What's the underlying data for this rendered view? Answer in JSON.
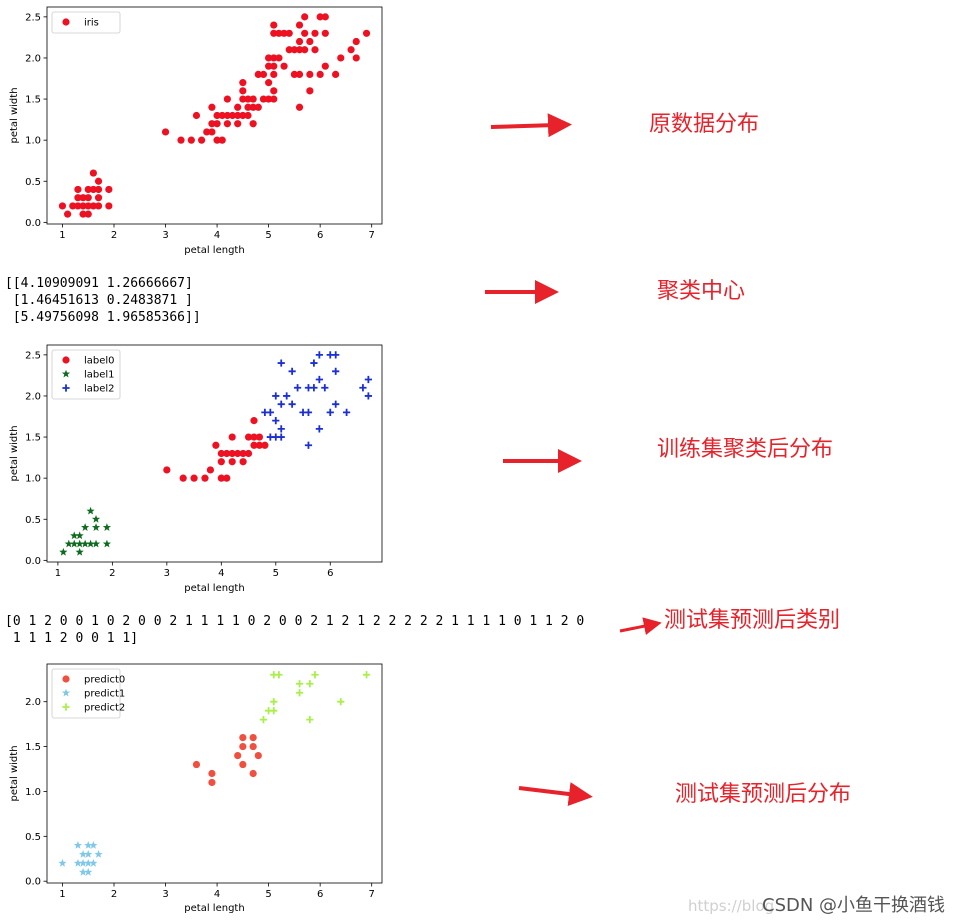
{
  "chart_data": [
    {
      "type": "scatter",
      "xlabel": "petal length",
      "ylabel": "petal width",
      "xlim": [
        0.7,
        7.2
      ],
      "ylim": [
        -0.02,
        2.62
      ],
      "xticks": [
        "1",
        "2",
        "3",
        "4",
        "5",
        "6",
        "7"
      ],
      "yticks": [
        "0.0",
        "0.5",
        "1.0",
        "1.5",
        "2.0",
        "2.5"
      ],
      "legend_position": "top-left",
      "series": [
        {
          "name": "iris",
          "color": "#ee1122",
          "marker": "circle",
          "points": [
            [
              1.0,
              0.2
            ],
            [
              1.1,
              0.1
            ],
            [
              1.2,
              0.2
            ],
            [
              1.3,
              0.2
            ],
            [
              1.3,
              0.3
            ],
            [
              1.3,
              0.4
            ],
            [
              1.4,
              0.1
            ],
            [
              1.4,
              0.2
            ],
            [
              1.4,
              0.3
            ],
            [
              1.5,
              0.1
            ],
            [
              1.5,
              0.2
            ],
            [
              1.5,
              0.3
            ],
            [
              1.5,
              0.4
            ],
            [
              1.6,
              0.2
            ],
            [
              1.6,
              0.4
            ],
            [
              1.6,
              0.6
            ],
            [
              1.7,
              0.2
            ],
            [
              1.7,
              0.3
            ],
            [
              1.7,
              0.4
            ],
            [
              1.7,
              0.5
            ],
            [
              1.9,
              0.2
            ],
            [
              1.9,
              0.4
            ],
            [
              3.0,
              1.1
            ],
            [
              3.3,
              1.0
            ],
            [
              3.5,
              1.0
            ],
            [
              3.6,
              1.3
            ],
            [
              3.7,
              1.0
            ],
            [
              3.8,
              1.1
            ],
            [
              3.9,
              1.1
            ],
            [
              3.9,
              1.2
            ],
            [
              3.9,
              1.4
            ],
            [
              4.0,
              1.0
            ],
            [
              4.0,
              1.2
            ],
            [
              4.0,
              1.3
            ],
            [
              4.1,
              1.0
            ],
            [
              4.1,
              1.3
            ],
            [
              4.2,
              1.2
            ],
            [
              4.2,
              1.3
            ],
            [
              4.2,
              1.5
            ],
            [
              4.3,
              1.3
            ],
            [
              4.4,
              1.2
            ],
            [
              4.4,
              1.3
            ],
            [
              4.4,
              1.4
            ],
            [
              4.5,
              1.3
            ],
            [
              4.5,
              1.5
            ],
            [
              4.5,
              1.6
            ],
            [
              4.5,
              1.7
            ],
            [
              4.6,
              1.3
            ],
            [
              4.6,
              1.4
            ],
            [
              4.6,
              1.5
            ],
            [
              4.7,
              1.2
            ],
            [
              4.7,
              1.4
            ],
            [
              4.7,
              1.5
            ],
            [
              4.8,
              1.4
            ],
            [
              4.8,
              1.8
            ],
            [
              4.9,
              1.5
            ],
            [
              4.9,
              1.8
            ],
            [
              5.0,
              1.5
            ],
            [
              5.0,
              1.7
            ],
            [
              5.0,
              2.0
            ],
            [
              5.0,
              1.9
            ],
            [
              5.1,
              1.5
            ],
            [
              5.1,
              1.6
            ],
            [
              5.1,
              1.8
            ],
            [
              5.1,
              1.9
            ],
            [
              5.1,
              2.0
            ],
            [
              5.1,
              2.3
            ],
            [
              5.1,
              2.4
            ],
            [
              5.2,
              2.0
            ],
            [
              5.2,
              2.3
            ],
            [
              5.3,
              1.9
            ],
            [
              5.3,
              2.3
            ],
            [
              5.4,
              2.1
            ],
            [
              5.4,
              2.3
            ],
            [
              5.5,
              1.8
            ],
            [
              5.5,
              2.1
            ],
            [
              5.6,
              1.4
            ],
            [
              5.6,
              1.8
            ],
            [
              5.6,
              2.1
            ],
            [
              5.6,
              2.2
            ],
            [
              5.6,
              2.4
            ],
            [
              5.7,
              2.1
            ],
            [
              5.7,
              2.3
            ],
            [
              5.7,
              2.5
            ],
            [
              5.8,
              1.6
            ],
            [
              5.8,
              1.8
            ],
            [
              5.8,
              2.2
            ],
            [
              5.9,
              2.1
            ],
            [
              5.9,
              2.3
            ],
            [
              6.0,
              1.8
            ],
            [
              6.0,
              2.5
            ],
            [
              6.1,
              1.9
            ],
            [
              6.1,
              2.3
            ],
            [
              6.1,
              2.5
            ],
            [
              6.3,
              1.8
            ],
            [
              6.4,
              2.0
            ],
            [
              6.6,
              2.1
            ],
            [
              6.7,
              2.0
            ],
            [
              6.7,
              2.2
            ],
            [
              6.9,
              2.3
            ]
          ]
        }
      ]
    },
    {
      "type": "scatter",
      "xlabel": "petal length",
      "ylabel": "petal width",
      "xlim": [
        0.8,
        6.95
      ],
      "ylim": [
        -0.02,
        2.62
      ],
      "xticks": [
        "1",
        "2",
        "3",
        "4",
        "5",
        "6"
      ],
      "yticks": [
        "0.0",
        "0.5",
        "1.0",
        "1.5",
        "2.0",
        "2.5"
      ],
      "legend_position": "top-left",
      "series": [
        {
          "name": "label0",
          "color": "#ee1122",
          "marker": "circle",
          "points": [
            [
              3.0,
              1.1
            ],
            [
              3.3,
              1.0
            ],
            [
              3.5,
              1.0
            ],
            [
              3.7,
              1.0
            ],
            [
              3.8,
              1.1
            ],
            [
              3.9,
              1.4
            ],
            [
              4.0,
              1.0
            ],
            [
              4.0,
              1.2
            ],
            [
              4.0,
              1.3
            ],
            [
              4.1,
              1.0
            ],
            [
              4.1,
              1.3
            ],
            [
              4.2,
              1.2
            ],
            [
              4.2,
              1.3
            ],
            [
              4.2,
              1.5
            ],
            [
              4.3,
              1.3
            ],
            [
              4.4,
              1.2
            ],
            [
              4.4,
              1.3
            ],
            [
              4.5,
              1.3
            ],
            [
              4.5,
              1.5
            ],
            [
              4.6,
              1.4
            ],
            [
              4.6,
              1.5
            ],
            [
              4.6,
              1.7
            ],
            [
              4.7,
              1.4
            ],
            [
              4.7,
              1.5
            ],
            [
              4.8,
              1.4
            ]
          ]
        },
        {
          "name": "label1",
          "color": "#0f6b1e",
          "marker": "star",
          "points": [
            [
              1.1,
              0.1
            ],
            [
              1.2,
              0.2
            ],
            [
              1.3,
              0.2
            ],
            [
              1.3,
              0.3
            ],
            [
              1.4,
              0.1
            ],
            [
              1.4,
              0.2
            ],
            [
              1.4,
              0.3
            ],
            [
              1.5,
              0.2
            ],
            [
              1.5,
              0.4
            ],
            [
              1.6,
              0.2
            ],
            [
              1.6,
              0.6
            ],
            [
              1.7,
              0.2
            ],
            [
              1.7,
              0.4
            ],
            [
              1.7,
              0.5
            ],
            [
              1.9,
              0.2
            ],
            [
              1.9,
              0.4
            ]
          ]
        },
        {
          "name": "label2",
          "color": "#1a2fd6",
          "marker": "plus",
          "points": [
            [
              4.8,
              1.8
            ],
            [
              4.9,
              1.5
            ],
            [
              4.9,
              1.8
            ],
            [
              5.0,
              1.5
            ],
            [
              5.0,
              1.7
            ],
            [
              5.0,
              2.0
            ],
            [
              5.1,
              1.5
            ],
            [
              5.1,
              1.6
            ],
            [
              5.1,
              1.9
            ],
            [
              5.1,
              2.4
            ],
            [
              5.2,
              2.0
            ],
            [
              5.3,
              1.9
            ],
            [
              5.3,
              2.3
            ],
            [
              5.4,
              2.1
            ],
            [
              5.5,
              1.8
            ],
            [
              5.6,
              1.4
            ],
            [
              5.6,
              1.8
            ],
            [
              5.6,
              2.1
            ],
            [
              5.7,
              2.1
            ],
            [
              5.7,
              2.4
            ],
            [
              5.8,
              1.6
            ],
            [
              5.8,
              2.2
            ],
            [
              5.8,
              2.5
            ],
            [
              5.9,
              2.1
            ],
            [
              6.0,
              1.8
            ],
            [
              6.0,
              2.5
            ],
            [
              6.1,
              1.9
            ],
            [
              6.1,
              2.3
            ],
            [
              6.1,
              2.5
            ],
            [
              6.3,
              1.8
            ],
            [
              6.6,
              2.1
            ],
            [
              6.7,
              2.0
            ],
            [
              6.7,
              2.2
            ]
          ]
        }
      ]
    },
    {
      "type": "scatter",
      "xlabel": "petal length",
      "ylabel": "petal width",
      "xlim": [
        0.7,
        7.2
      ],
      "ylim": [
        -0.02,
        2.42
      ],
      "xticks": [
        "1",
        "2",
        "3",
        "4",
        "5",
        "6",
        "7"
      ],
      "yticks": [
        "0.0",
        "0.5",
        "1.0",
        "1.5",
        "2.0"
      ],
      "legend_position": "top-left",
      "series": [
        {
          "name": "predict0",
          "color": "#f05040",
          "marker": "circle",
          "points": [
            [
              3.6,
              1.3
            ],
            [
              3.9,
              1.1
            ],
            [
              3.9,
              1.2
            ],
            [
              4.4,
              1.4
            ],
            [
              4.5,
              1.3
            ],
            [
              4.5,
              1.5
            ],
            [
              4.5,
              1.6
            ],
            [
              4.7,
              1.2
            ],
            [
              4.7,
              1.5
            ],
            [
              4.7,
              1.6
            ],
            [
              4.8,
              1.4
            ]
          ]
        },
        {
          "name": "predict1",
          "color": "#80c8ea",
          "marker": "star",
          "points": [
            [
              1.0,
              0.2
            ],
            [
              1.3,
              0.2
            ],
            [
              1.3,
              0.4
            ],
            [
              1.4,
              0.1
            ],
            [
              1.4,
              0.2
            ],
            [
              1.4,
              0.3
            ],
            [
              1.5,
              0.1
            ],
            [
              1.5,
              0.2
            ],
            [
              1.5,
              0.3
            ],
            [
              1.5,
              0.4
            ],
            [
              1.6,
              0.2
            ],
            [
              1.6,
              0.4
            ],
            [
              1.7,
              0.3
            ]
          ]
        },
        {
          "name": "predict2",
          "color": "#a8f048",
          "marker": "plus",
          "points": [
            [
              4.9,
              1.8
            ],
            [
              5.0,
              1.9
            ],
            [
              5.1,
              1.9
            ],
            [
              5.1,
              2.0
            ],
            [
              5.1,
              2.3
            ],
            [
              5.2,
              2.3
            ],
            [
              5.6,
              2.1
            ],
            [
              5.6,
              2.2
            ],
            [
              5.8,
              1.8
            ],
            [
              5.8,
              2.2
            ],
            [
              5.9,
              2.3
            ],
            [
              6.4,
              2.0
            ],
            [
              6.9,
              2.3
            ]
          ]
        }
      ]
    }
  ],
  "outputs": {
    "centers": [
      "[[4.10909091 1.26666667]",
      " [1.46451613 0.2483871 ]",
      " [5.49756098 1.96585366]]"
    ],
    "labels": [
      "[0 1 2 0 0 1 0 2 0 0 2 1 1 1 1 0 2 0 0 2 1 2 1 2 2 2 2 2 1 1 1 1 0 1 1 2 0",
      " 1 1 1 2 0 0 1 1]"
    ]
  },
  "annotations": {
    "original": "原数据分布",
    "centers": "聚类中心",
    "train": "训练集聚类后分布",
    "predict_labels": "测试集预测后类别",
    "predict_dist": "测试集预测后分布"
  },
  "watermark": {
    "url": "https://blog",
    "brand": "CSDN @小鱼干换酒钱"
  }
}
